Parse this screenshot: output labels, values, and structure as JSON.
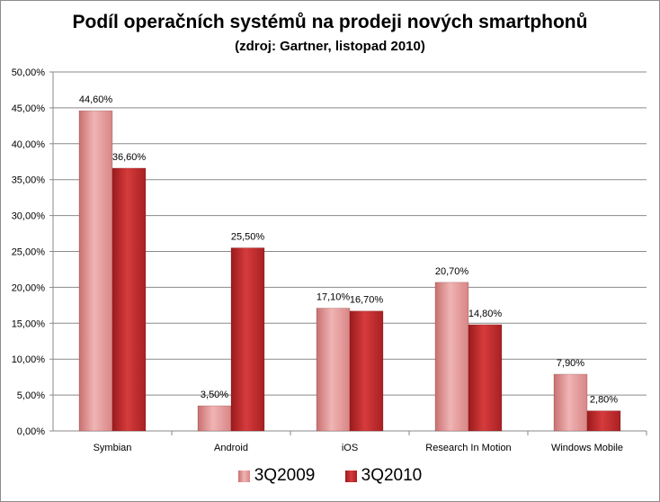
{
  "chart_data": {
    "type": "bar",
    "title": "Podíl operačních systémů na prodeji nových smartphonů",
    "subtitle": "(zdroj: Gartner, listopad 2010)",
    "categories": [
      "Symbian",
      "Android",
      "iOS",
      "Research In Motion",
      "Windows Mobile"
    ],
    "series": [
      {
        "name": "3Q2009",
        "values": [
          44.6,
          3.5,
          17.1,
          20.7,
          7.9
        ],
        "labels": [
          "44,60%",
          "3,50%",
          "17,10%",
          "20,70%",
          "7,90%"
        ],
        "color": "#e39a9a"
      },
      {
        "name": "3Q2010",
        "values": [
          36.6,
          25.5,
          16.7,
          14.8,
          2.8
        ],
        "labels": [
          "36,60%",
          "25,50%",
          "16,70%",
          "14,80%",
          "2,80%"
        ],
        "color": "#c0282a"
      }
    ],
    "ylim": [
      0,
      50
    ],
    "yticks": [
      "0,00%",
      "5,00%",
      "10,00%",
      "15,00%",
      "20,00%",
      "25,00%",
      "30,00%",
      "35,00%",
      "40,00%",
      "45,00%",
      "50,00%"
    ],
    "grid": true,
    "legend": "bottom"
  }
}
